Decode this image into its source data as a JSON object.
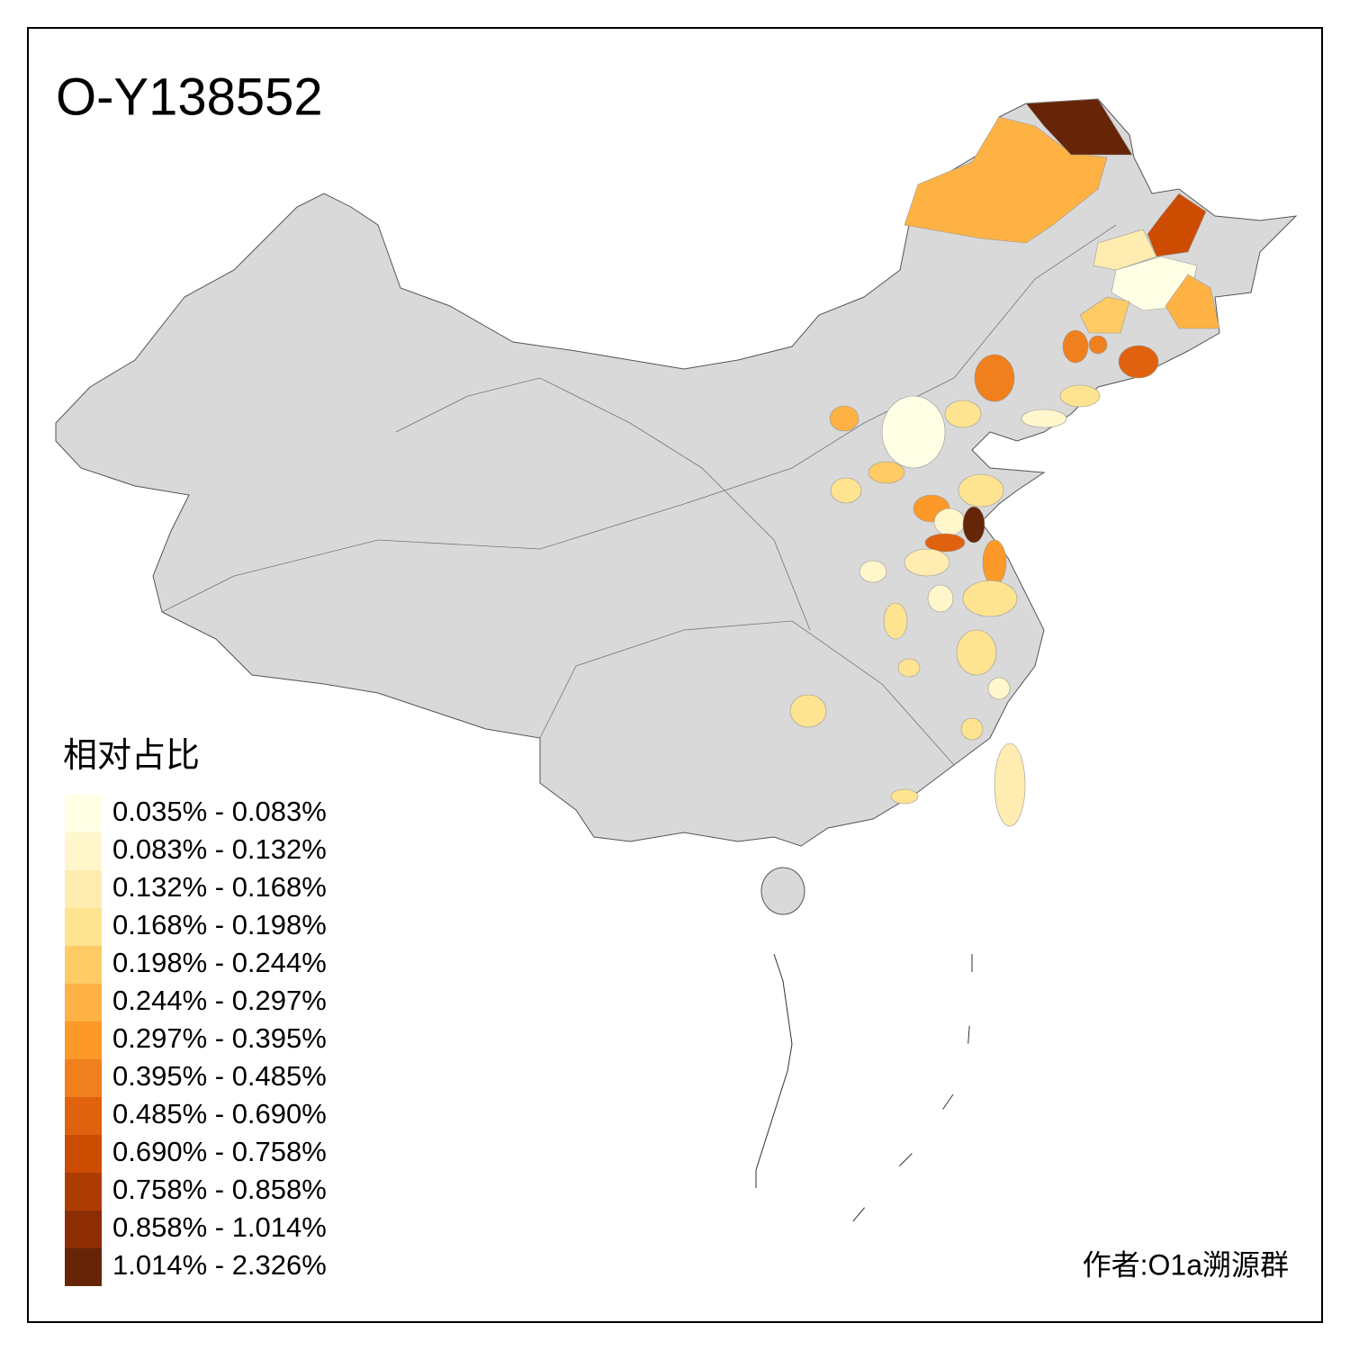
{
  "title": "O-Y138552",
  "legend": {
    "title": "相对占比",
    "items": [
      {
        "label": "0.035% - 0.083%",
        "color": "#ffffe5"
      },
      {
        "label": "0.083% - 0.132%",
        "color": "#fff6cc"
      },
      {
        "label": "0.132% - 0.168%",
        "color": "#feecb0"
      },
      {
        "label": "0.168% - 0.198%",
        "color": "#fee391"
      },
      {
        "label": "0.198% - 0.244%",
        "color": "#fecb65"
      },
      {
        "label": "0.244% - 0.297%",
        "color": "#feb244"
      },
      {
        "label": "0.297% - 0.395%",
        "color": "#fd9929"
      },
      {
        "label": "0.395% - 0.485%",
        "color": "#f07f1d"
      },
      {
        "label": "0.485% - 0.690%",
        "color": "#e0620f"
      },
      {
        "label": "0.690% - 0.758%",
        "color": "#cc4c02"
      },
      {
        "label": "0.758% - 0.858%",
        "color": "#ad3c03"
      },
      {
        "label": "0.858% - 1.014%",
        "color": "#8c2d04"
      },
      {
        "label": "1.014% - 2.326%",
        "color": "#662506"
      }
    ]
  },
  "author": "作者:O1a溯源群"
}
